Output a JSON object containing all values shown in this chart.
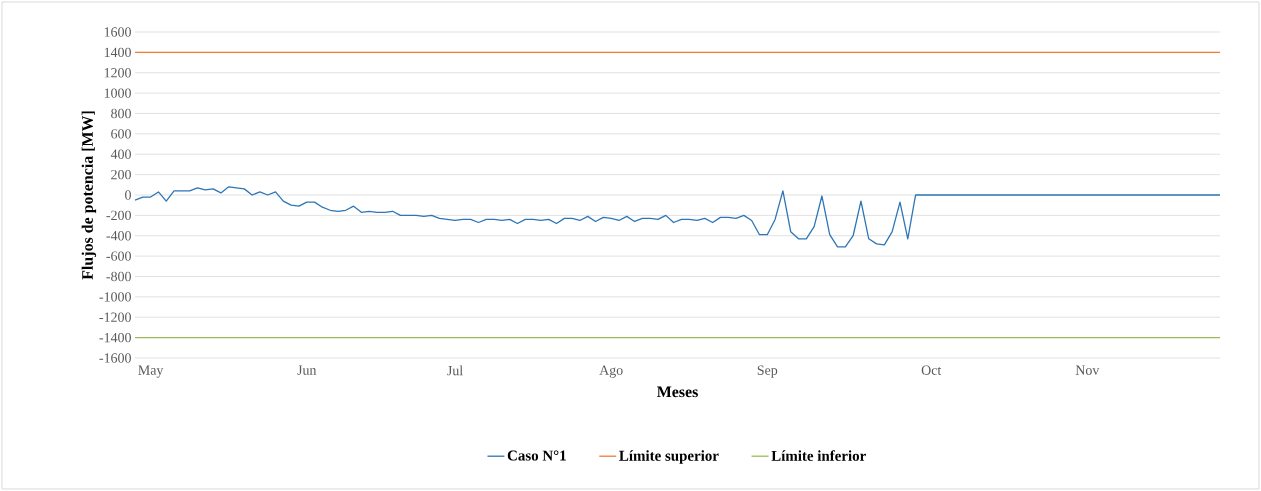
{
  "chart_data": {
    "type": "line",
    "xlabel": "Meses",
    "ylabel": "Flujos de potencia [MW]",
    "categories": [
      null,
      null,
      "May",
      null,
      null,
      null,
      null,
      null,
      null,
      null,
      null,
      null,
      null,
      null,
      null,
      null,
      null,
      null,
      null,
      null,
      null,
      null,
      "Jun",
      null,
      null,
      null,
      null,
      null,
      null,
      null,
      null,
      null,
      null,
      null,
      null,
      null,
      null,
      null,
      null,
      null,
      null,
      "Jul",
      null,
      null,
      null,
      null,
      null,
      null,
      null,
      null,
      null,
      null,
      null,
      null,
      null,
      null,
      null,
      null,
      null,
      null,
      null,
      "Ago",
      null,
      null,
      null,
      null,
      null,
      null,
      null,
      null,
      null,
      null,
      null,
      null,
      null,
      null,
      null,
      null,
      null,
      null,
      null,
      "Sep",
      null,
      null,
      null,
      null,
      null,
      null,
      null,
      null,
      null,
      null,
      null,
      null,
      null,
      null,
      null,
      null,
      null,
      null,
      null,
      null,
      "Oct",
      null,
      null,
      null,
      null,
      null,
      null,
      null,
      null,
      null,
      null,
      null,
      null,
      null,
      null,
      null,
      null,
      null,
      null,
      null,
      "Nov",
      null,
      null,
      null,
      null,
      null,
      null,
      null,
      null,
      null,
      null,
      null,
      null,
      null,
      null,
      null,
      null,
      null
    ],
    "ylim": [
      -1600,
      1600
    ],
    "yticks": [
      -1600,
      -1400,
      -1200,
      -1000,
      -800,
      -600,
      -400,
      -200,
      0,
      200,
      400,
      600,
      800,
      1000,
      1200,
      1400,
      1600
    ],
    "grid": "y",
    "legend": "bottom",
    "series": [
      {
        "name": "Caso N°1",
        "color": "#2e75b6",
        "values": [
          -50,
          -20,
          -20,
          30,
          -60,
          40,
          40,
          40,
          70,
          50,
          60,
          20,
          80,
          70,
          60,
          0,
          30,
          0,
          30,
          -60,
          -100,
          -110,
          -70,
          -70,
          -120,
          -150,
          -160,
          -150,
          -110,
          -170,
          -160,
          -170,
          -170,
          -160,
          -200,
          -200,
          -200,
          -210,
          -200,
          -230,
          -240,
          -250,
          -240,
          -240,
          -270,
          -240,
          -240,
          -250,
          -240,
          -280,
          -240,
          -240,
          -250,
          -240,
          -280,
          -230,
          -230,
          -250,
          -210,
          -260,
          -220,
          -230,
          -250,
          -210,
          -260,
          -230,
          -230,
          -240,
          -200,
          -270,
          -240,
          -240,
          -250,
          -230,
          -270,
          -220,
          -220,
          -230,
          -200,
          -250,
          -390,
          -390,
          -240,
          40,
          -360,
          -430,
          -430,
          -310,
          -10,
          -390,
          -510,
          -510,
          -400,
          -60,
          -430,
          -480,
          -490,
          -360,
          -70,
          -430,
          0,
          0,
          0,
          0,
          0,
          0,
          0,
          0,
          0,
          0,
          0,
          0,
          0,
          0,
          0,
          0,
          0,
          0,
          0,
          0,
          0,
          0,
          0,
          0,
          0,
          0,
          0,
          0,
          0,
          0,
          0,
          0,
          0,
          0,
          0,
          0,
          0,
          0,
          0,
          0
        ]
      },
      {
        "name": "Límite superior",
        "color": "#ed7d31",
        "values": [
          1400,
          1400,
          1400,
          1400,
          1400,
          1400,
          1400,
          1400,
          1400,
          1400,
          1400,
          1400,
          1400,
          1400,
          1400,
          1400,
          1400,
          1400,
          1400,
          1400,
          1400,
          1400,
          1400,
          1400,
          1400,
          1400,
          1400,
          1400,
          1400,
          1400,
          1400,
          1400,
          1400,
          1400,
          1400,
          1400,
          1400,
          1400,
          1400,
          1400,
          1400,
          1400,
          1400,
          1400,
          1400,
          1400,
          1400,
          1400,
          1400,
          1400,
          1400,
          1400,
          1400,
          1400,
          1400,
          1400,
          1400,
          1400,
          1400,
          1400,
          1400,
          1400,
          1400,
          1400,
          1400,
          1400,
          1400,
          1400,
          1400,
          1400,
          1400,
          1400,
          1400,
          1400,
          1400,
          1400,
          1400,
          1400,
          1400,
          1400,
          1400,
          1400,
          1400,
          1400,
          1400,
          1400,
          1400,
          1400,
          1400,
          1400,
          1400,
          1400,
          1400,
          1400,
          1400,
          1400,
          1400,
          1400,
          1400,
          1400,
          1400,
          1400,
          1400,
          1400,
          1400,
          1400,
          1400,
          1400,
          1400,
          1400,
          1400,
          1400,
          1400,
          1400,
          1400,
          1400,
          1400,
          1400,
          1400,
          1400,
          1400,
          1400,
          1400,
          1400,
          1400,
          1400,
          1400,
          1400,
          1400,
          1400,
          1400,
          1400,
          1400,
          1400,
          1400,
          1400,
          1400,
          1400,
          1400,
          1400
        ]
      },
      {
        "name": "Límite inferior",
        "color": "#9bbb59",
        "values": [
          -1400,
          -1400,
          -1400,
          -1400,
          -1400,
          -1400,
          -1400,
          -1400,
          -1400,
          -1400,
          -1400,
          -1400,
          -1400,
          -1400,
          -1400,
          -1400,
          -1400,
          -1400,
          -1400,
          -1400,
          -1400,
          -1400,
          -1400,
          -1400,
          -1400,
          -1400,
          -1400,
          -1400,
          -1400,
          -1400,
          -1400,
          -1400,
          -1400,
          -1400,
          -1400,
          -1400,
          -1400,
          -1400,
          -1400,
          -1400,
          -1400,
          -1400,
          -1400,
          -1400,
          -1400,
          -1400,
          -1400,
          -1400,
          -1400,
          -1400,
          -1400,
          -1400,
          -1400,
          -1400,
          -1400,
          -1400,
          -1400,
          -1400,
          -1400,
          -1400,
          -1400,
          -1400,
          -1400,
          -1400,
          -1400,
          -1400,
          -1400,
          -1400,
          -1400,
          -1400,
          -1400,
          -1400,
          -1400,
          -1400,
          -1400,
          -1400,
          -1400,
          -1400,
          -1400,
          -1400,
          -1400,
          -1400,
          -1400,
          -1400,
          -1400,
          -1400,
          -1400,
          -1400,
          -1400,
          -1400,
          -1400,
          -1400,
          -1400,
          -1400,
          -1400,
          -1400,
          -1400,
          -1400,
          -1400,
          -1400,
          -1400,
          -1400,
          -1400,
          -1400,
          -1400,
          -1400,
          -1400,
          -1400,
          -1400,
          -1400,
          -1400,
          -1400,
          -1400,
          -1400,
          -1400,
          -1400,
          -1400,
          -1400,
          -1400,
          -1400,
          -1400,
          -1400,
          -1400,
          -1400,
          -1400,
          -1400,
          -1400,
          -1400,
          -1400,
          -1400,
          -1400,
          -1400,
          -1400,
          -1400,
          -1400,
          -1400,
          -1400,
          -1400,
          -1400,
          -1400
        ]
      }
    ]
  }
}
